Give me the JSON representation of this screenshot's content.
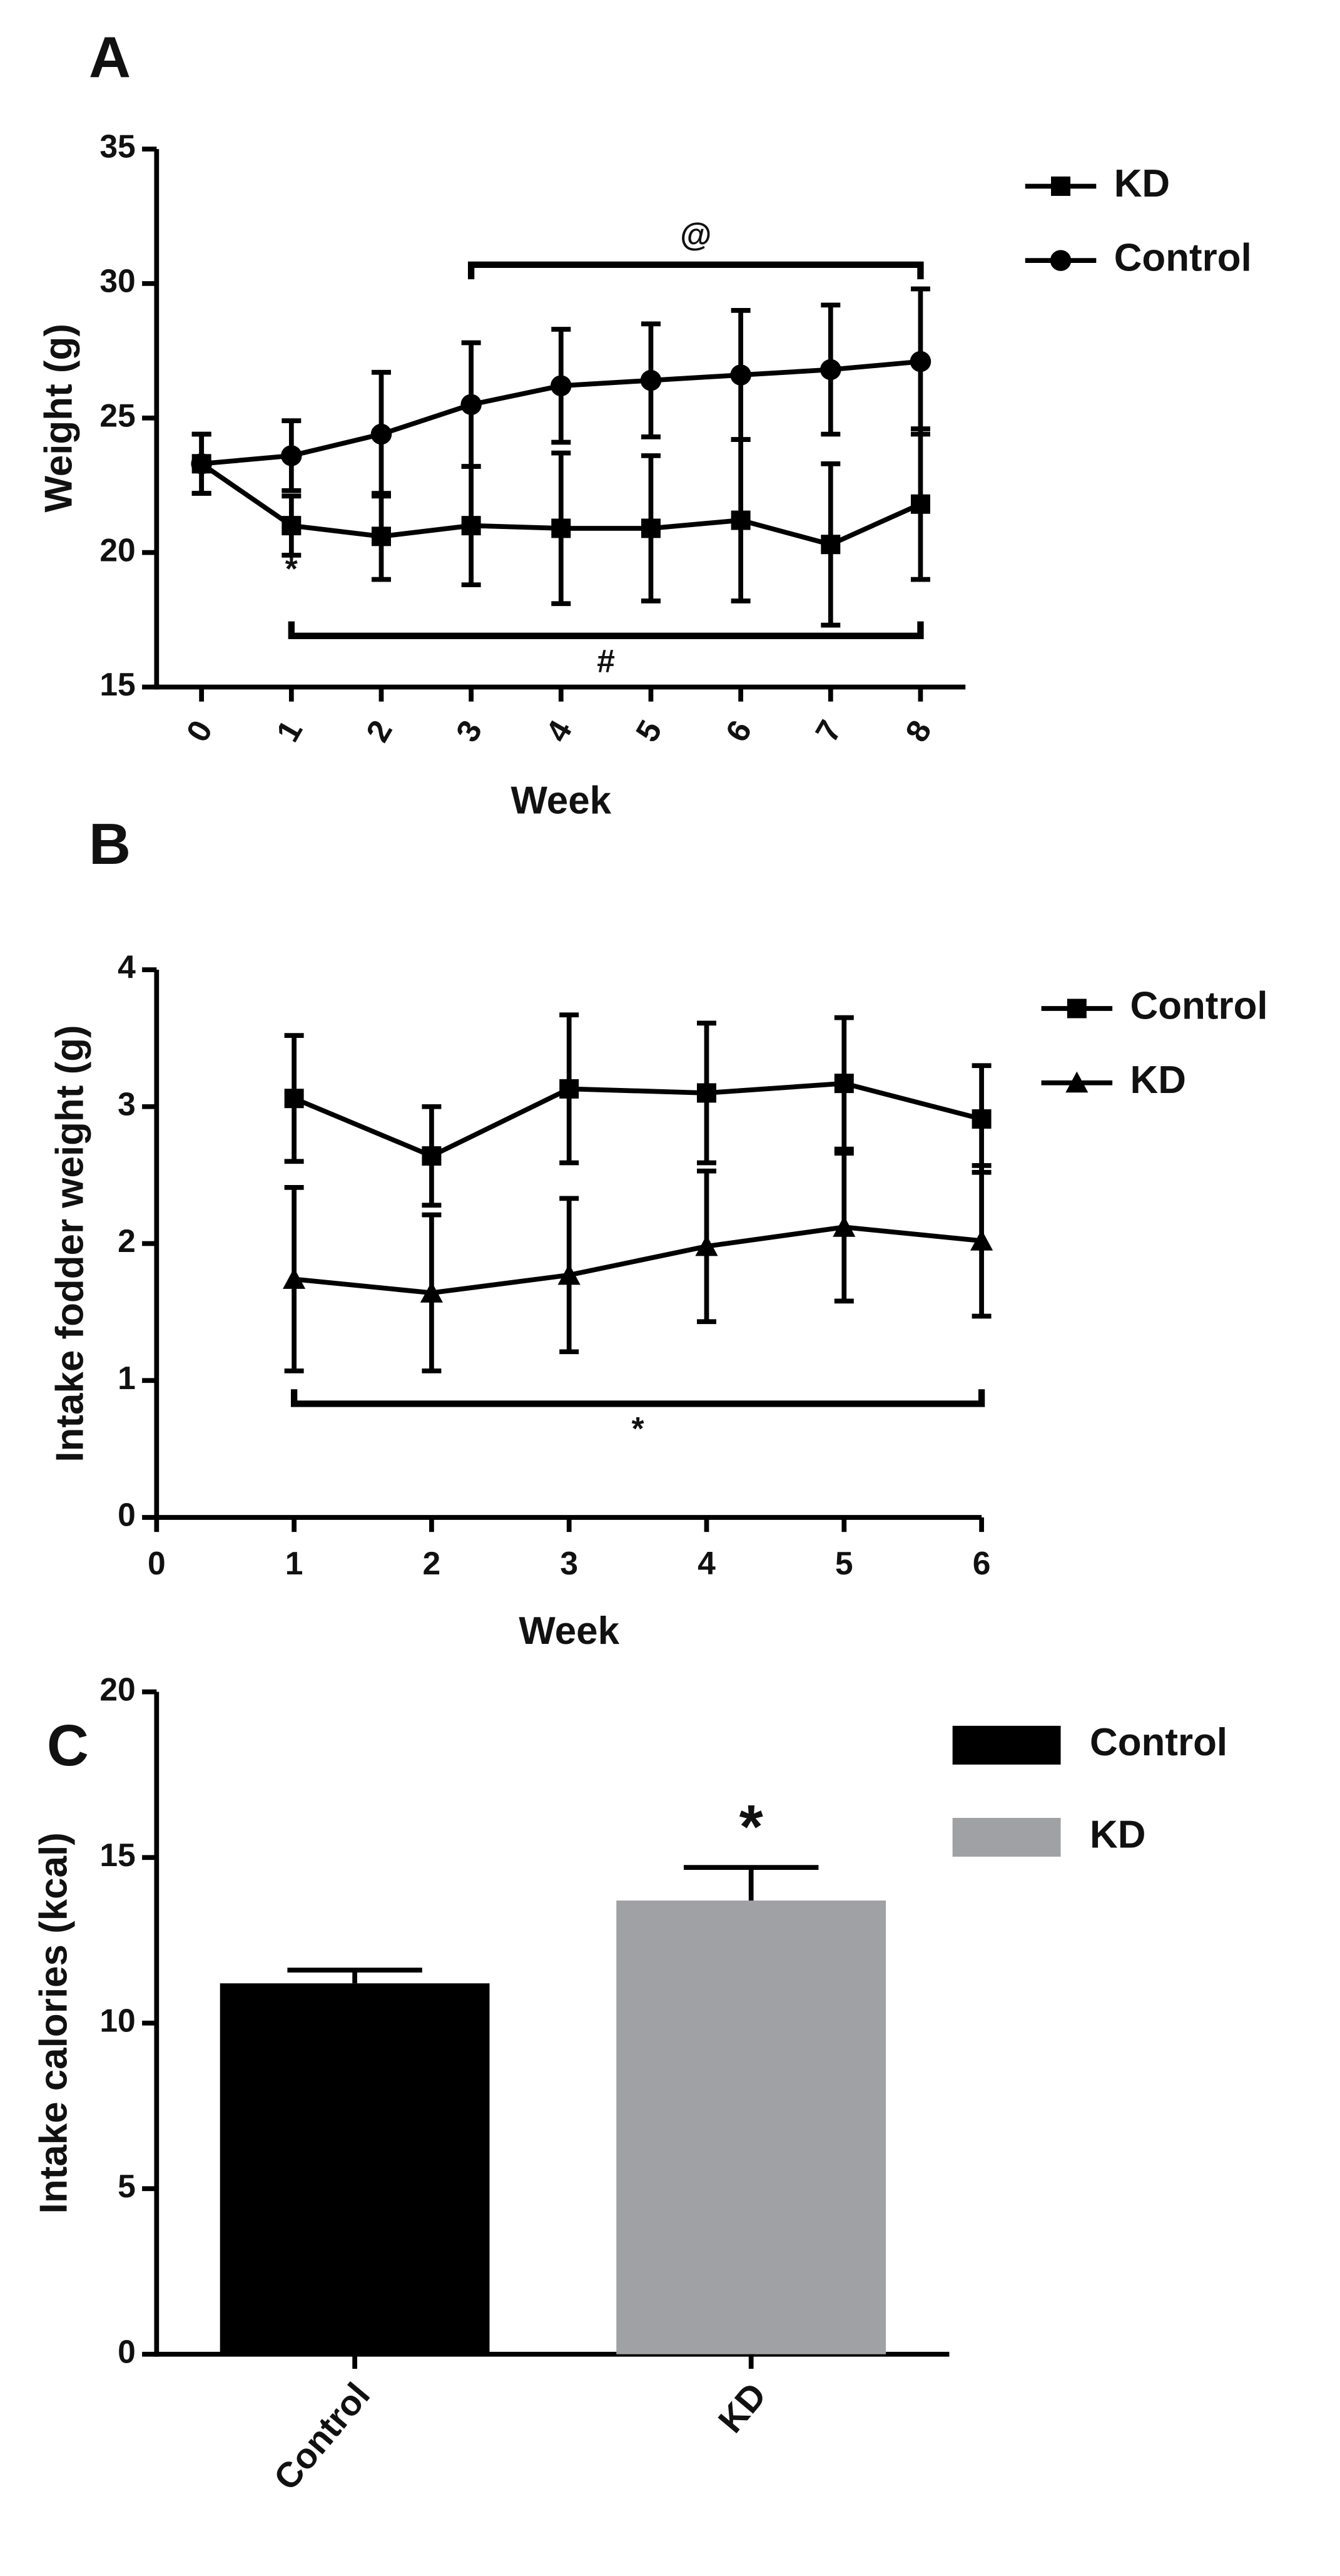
{
  "chart_data": [
    {
      "type": "line",
      "panel": "A",
      "xlabel": "Week",
      "ylabel": "Weight (g)",
      "x": [
        0,
        1,
        2,
        3,
        4,
        5,
        6,
        7,
        8
      ],
      "xlim": [
        -0.5,
        8.5
      ],
      "xticks": [
        0,
        1,
        2,
        3,
        4,
        5,
        6,
        7,
        8
      ],
      "xtick_rotation": -60,
      "ylim": [
        15,
        35
      ],
      "yticks": [
        15,
        20,
        25,
        30,
        35
      ],
      "series": [
        {
          "name": "KD",
          "marker": "square",
          "color": "#000000",
          "values": [
            23.3,
            21.0,
            20.6,
            21.0,
            20.9,
            20.9,
            21.2,
            20.3,
            21.8
          ],
          "errors": [
            1.1,
            1.1,
            1.6,
            2.2,
            2.8,
            2.7,
            3.0,
            3.0,
            2.8
          ]
        },
        {
          "name": "Control",
          "marker": "circle",
          "color": "#000000",
          "values": [
            23.3,
            23.6,
            24.4,
            25.5,
            26.2,
            26.4,
            26.6,
            26.8,
            27.1
          ],
          "errors": [
            1.1,
            1.3,
            2.3,
            2.3,
            2.1,
            2.1,
            2.4,
            2.4,
            2.7
          ]
        }
      ],
      "annotations": [
        {
          "text": "@",
          "from": 3,
          "to": 8,
          "y": 30.7,
          "side": "above"
        },
        {
          "text": "#",
          "from": 1,
          "to": 8,
          "y": 16.9,
          "side": "below"
        },
        {
          "text": "*",
          "x": 1,
          "y": 19.3
        }
      ]
    },
    {
      "type": "line",
      "panel": "B",
      "xlabel": "Week",
      "ylabel": "Intake fodder weight (g)",
      "x": [
        1,
        2,
        3,
        4,
        5,
        6
      ],
      "xlim": [
        0,
        6
      ],
      "xticks": [
        0,
        1,
        2,
        3,
        4,
        5,
        6
      ],
      "xtick_rotation": 0,
      "ylim": [
        0,
        4
      ],
      "yticks": [
        0,
        1,
        2,
        3,
        4
      ],
      "series": [
        {
          "name": "Control",
          "marker": "square",
          "color": "#000000",
          "values": [
            3.06,
            2.64,
            3.13,
            3.1,
            3.17,
            2.91
          ],
          "errors": [
            0.46,
            0.36,
            0.54,
            0.51,
            0.48,
            0.39
          ]
        },
        {
          "name": "KD",
          "marker": "triangle",
          "color": "#000000",
          "values": [
            1.74,
            1.64,
            1.77,
            1.98,
            2.12,
            2.02
          ],
          "errors": [
            0.67,
            0.57,
            0.56,
            0.55,
            0.54,
            0.55
          ]
        }
      ],
      "annotations": [
        {
          "text": "*",
          "from": 1,
          "to": 6,
          "y": 0.83,
          "side": "below"
        }
      ]
    },
    {
      "type": "bar",
      "panel": "C",
      "ylabel": "Intake calories (kcal)",
      "categories": [
        "Control",
        "KD"
      ],
      "values": [
        11.2,
        13.7
      ],
      "errors": [
        0.4,
        1.0
      ],
      "colors": [
        "#000000",
        "#a0a1a5"
      ],
      "ylim": [
        0,
        20
      ],
      "yticks": [
        0,
        5,
        10,
        15,
        20
      ],
      "annotations": [
        {
          "text": "*",
          "category": "KD"
        }
      ]
    }
  ]
}
